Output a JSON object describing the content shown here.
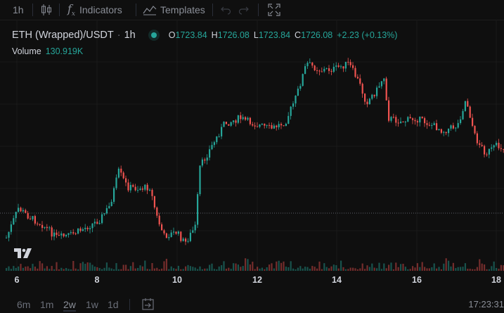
{
  "toolbar": {
    "interval": "1h",
    "indicators_label": "Indicators",
    "templates_label": "Templates"
  },
  "legend": {
    "symbol": "ETH (Wrapped)/USDT",
    "separator": "·",
    "interval": "1h",
    "open_key": "O",
    "open": "1723.84",
    "high_key": "H",
    "high": "1726.08",
    "low_key": "L",
    "low": "1723.84",
    "close_key": "C",
    "close": "1726.08",
    "change": "+2.23 (+0.13%)"
  },
  "volume": {
    "label": "Volume",
    "value": "130.919K"
  },
  "time_axis": {
    "ticks": [
      "6",
      "8",
      "10",
      "12",
      "14",
      "16",
      "18"
    ]
  },
  "ranges": {
    "items": [
      "6m",
      "1m",
      "2w",
      "1w",
      "1d"
    ],
    "active": "2w"
  },
  "clock": "17:23:31",
  "colors": {
    "up": "#26a69a",
    "down": "#ef5350",
    "background": "#0f0f0f"
  },
  "icons": [
    "candles-icon",
    "fx-icon",
    "templates-icon",
    "undo-icon",
    "redo-icon",
    "fullscreen-icon",
    "go-to-date-icon",
    "tradingview-logo-icon"
  ]
}
